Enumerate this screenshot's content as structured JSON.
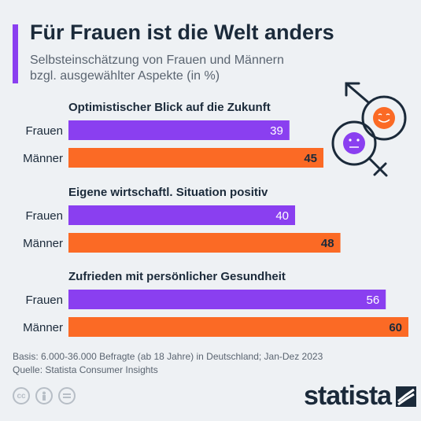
{
  "header": {
    "title": "Für Frauen ist die Welt anders",
    "subtitle": "Selbsteinschätzung von Frauen und Männern bzgl. ausgewählter Aspekte (in %)"
  },
  "colors": {
    "frauen": "#8a3ff0",
    "maenner": "#fb6a25",
    "accent": "#8a3ff0"
  },
  "chart_data": {
    "type": "bar",
    "orientation": "horizontal",
    "xlim": [
      0,
      60
    ],
    "grid": false,
    "legend": "none",
    "groups": [
      {
        "title": "Optimistischer Blick auf die Zukunft",
        "bars": [
          {
            "label": "Frauen",
            "value": 39
          },
          {
            "label": "Männer",
            "value": 45
          }
        ]
      },
      {
        "title": "Eigene wirtschaftl. Situation positiv",
        "bars": [
          {
            "label": "Frauen",
            "value": 40
          },
          {
            "label": "Männer",
            "value": 48
          }
        ]
      },
      {
        "title": "Zufrieden mit persönlicher Gesundheit",
        "bars": [
          {
            "label": "Frauen",
            "value": 56
          },
          {
            "label": "Männer",
            "value": 60
          }
        ]
      }
    ]
  },
  "illustration": {
    "icons": [
      "male-symbol-icon",
      "female-symbol-icon",
      "smiling-face-icon",
      "neutral-face-icon"
    ]
  },
  "footer": {
    "basis": "Basis: 6.000-36.000 Befragte (ab 18 Jahre) in Deutschland; Jan-Dez 2023",
    "source": "Quelle: Statista Consumer Insights",
    "license_icons": [
      "creative-commons-icon",
      "attribution-icon",
      "no-derivatives-icon"
    ],
    "brand": "statista"
  }
}
